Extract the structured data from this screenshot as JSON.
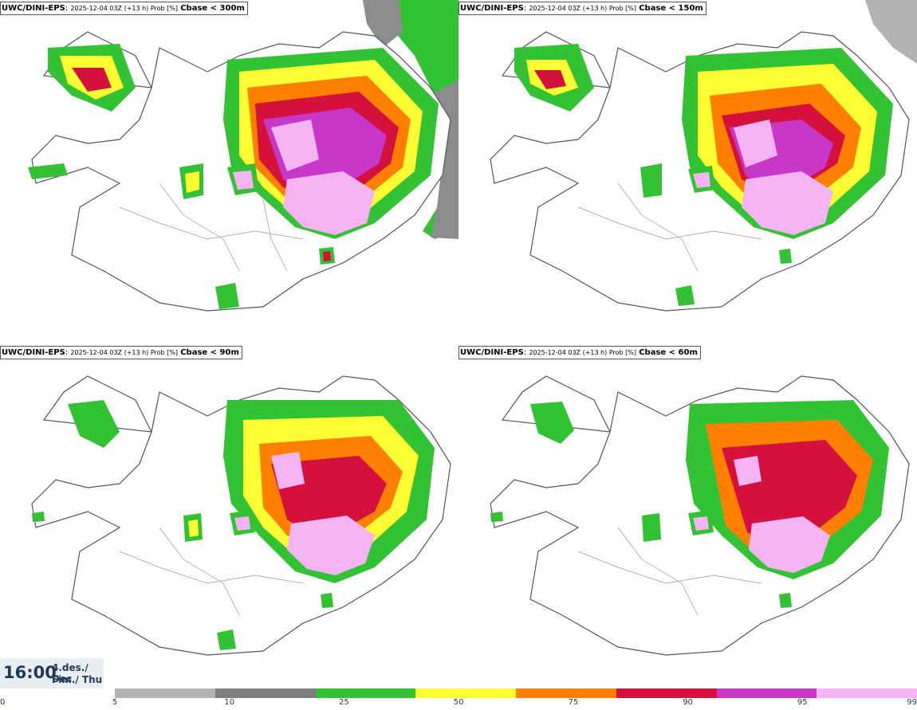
{
  "panels": [
    {
      "model": "UWC/DINI-EPS",
      "meta": "2025-12-04 03Z (+13 h) Prob [%]",
      "param": "Cbase < 300m",
      "level": 4
    },
    {
      "model": "UWC/DINI-EPS",
      "meta": "2025-12-04 03Z (+13 h) Prob [%]",
      "param": "Cbase < 150m",
      "level": 3
    },
    {
      "model": "UWC/DINI-EPS",
      "meta": "2025-12-04 03Z (+13 h) Prob [%]",
      "param": "Cbase < 90m",
      "level": 2
    },
    {
      "model": "UWC/DINI-EPS",
      "meta": "2025-12-04 03Z (+13 h) Prob [%]",
      "param": "Cbase < 60m",
      "level": 1
    }
  ],
  "valid_time": {
    "time": "16:00",
    "date_line1": "4.des./ Dec",
    "date_line2": "Fim./ Thu"
  },
  "legend": {
    "ticks": [
      "0",
      "5",
      "10",
      "25",
      "50",
      "75",
      "90",
      "95",
      "99"
    ],
    "colors": [
      "#ffffff",
      "#b3b3b3",
      "#7f7f7f",
      "#33c233",
      "#ffff33",
      "#ff7f00",
      "#d4103c",
      "#c838c8",
      "#f4b4f4"
    ]
  }
}
